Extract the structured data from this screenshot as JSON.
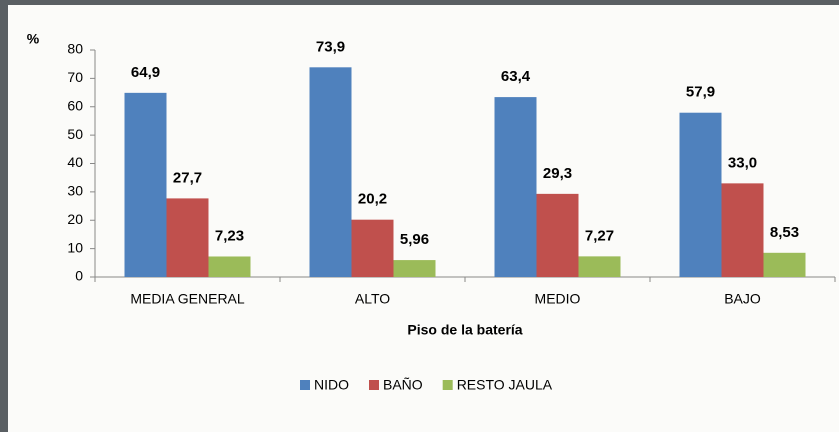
{
  "chart_data": {
    "type": "bar",
    "y_label": "%",
    "x_label": "Piso de la batería",
    "categories": [
      "MEDIA GENERAL",
      "ALTO",
      "MEDIO",
      "BAJO"
    ],
    "series": [
      {
        "name": "NIDO",
        "color": "#4f81bd",
        "values": [
          64.9,
          73.9,
          63.4,
          57.9
        ],
        "value_labels": [
          "64,9",
          "73,9",
          "63,4",
          "57,9"
        ]
      },
      {
        "name": "BAÑO",
        "color": "#c0504d",
        "values": [
          27.7,
          20.2,
          29.3,
          33.0
        ],
        "value_labels": [
          "27,7",
          "20,2",
          "29,3",
          "33,0"
        ]
      },
      {
        "name": "RESTO JAULA",
        "color": "#9bbb59",
        "values": [
          7.23,
          5.96,
          7.27,
          8.53
        ],
        "value_labels": [
          "7,23",
          "5,96",
          "7,27",
          "8,53"
        ]
      }
    ],
    "ylim": [
      0,
      80
    ],
    "yticks": [
      0,
      10,
      20,
      30,
      40,
      50,
      60,
      70,
      80
    ],
    "legend": "bottom"
  }
}
